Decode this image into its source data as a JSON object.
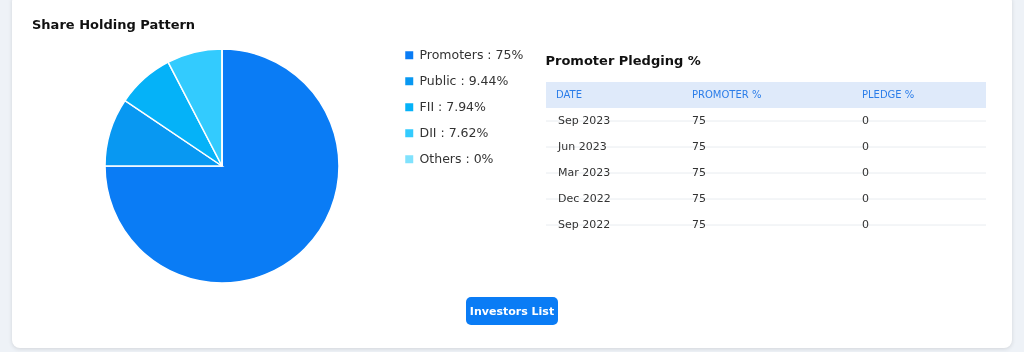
{
  "chart_data": [
    {
      "type": "pie",
      "title": "Share Holding Pattern",
      "categories": [
        "Promoters : 75%",
        "Public : 9.44%",
        "FII : 7.94%",
        "DII : 7.62%",
        "Others : 0%"
      ],
      "values": [
        75,
        9.44,
        7.94,
        7.62,
        0
      ],
      "colors": [
        "#0a7cf5",
        "#0898f2",
        "#05b2f8",
        "#33cbfe",
        "#80e2fd"
      ],
      "legend": "right",
      "annotations": [
        "Investors List"
      ]
    },
    {
      "type": "other",
      "title": "Promoter Pledging %",
      "xlabel": "DATE",
      "data_labels": true,
      "categories": [
        "Sep 2023",
        "Jun 2023",
        "Mar 2023",
        "Dec 2022",
        "Sep 2022"
      ],
      "series": [
        {
          "name": "PROMOTER %",
          "values": [
            75,
            75,
            75,
            75,
            75
          ]
        },
        {
          "name": "PLEDGE %",
          "values": [
            0,
            0,
            0,
            0,
            0
          ]
        }
      ]
    }
  ]
}
